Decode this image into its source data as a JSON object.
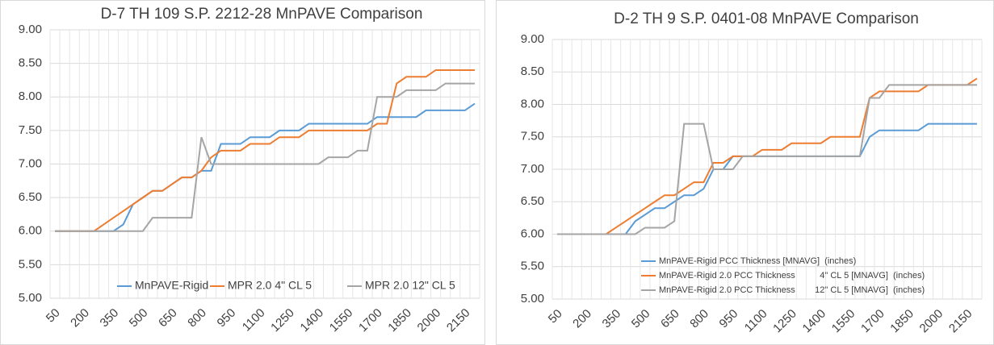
{
  "chart_data": [
    {
      "type": "line",
      "title": "D-7 TH 109 S.P. 2212-28 MnPAVE Comparison",
      "categories": [
        50,
        null,
        null,
        200,
        null,
        null,
        350,
        null,
        null,
        500,
        null,
        null,
        650,
        null,
        null,
        800,
        null,
        null,
        950,
        null,
        null,
        1100,
        null,
        null,
        1250,
        null,
        null,
        1400,
        null,
        null,
        1550,
        null,
        null,
        1700,
        null,
        null,
        1850,
        null,
        null,
        2000,
        null,
        null,
        2150,
        null
      ],
      "series": [
        {
          "name": "MnPAVE-Rigid",
          "color": "#5b9bd5",
          "values": [
            6,
            6,
            6,
            6,
            6,
            6,
            6,
            6.1,
            6.4,
            6.5,
            6.6,
            6.6,
            6.7,
            6.8,
            6.8,
            6.9,
            6.9,
            7.3,
            7.3,
            7.3,
            7.4,
            7.4,
            7.4,
            7.5,
            7.5,
            7.5,
            7.6,
            7.6,
            7.6,
            7.6,
            7.6,
            7.6,
            7.6,
            7.7,
            7.7,
            7.7,
            7.7,
            7.7,
            7.8,
            7.8,
            7.8,
            7.8,
            7.8,
            7.9
          ]
        },
        {
          "name": "MPR 2.0 4\" CL 5",
          "color": "#ed7d31",
          "values": [
            6,
            6,
            6,
            6,
            6,
            6.1,
            6.2,
            6.3,
            6.4,
            6.5,
            6.6,
            6.6,
            6.7,
            6.8,
            6.8,
            6.9,
            7.1,
            7.2,
            7.2,
            7.2,
            7.3,
            7.3,
            7.3,
            7.4,
            7.4,
            7.4,
            7.5,
            7.5,
            7.5,
            7.5,
            7.5,
            7.5,
            7.5,
            7.6,
            7.6,
            8.2,
            8.3,
            8.3,
            8.3,
            8.4,
            8.4,
            8.4,
            8.4,
            8.4
          ]
        },
        {
          "name": "MPR 2.0 12\" CL 5",
          "color": "#a5a5a5",
          "values": [
            6,
            6,
            6,
            6,
            6,
            6,
            6,
            6,
            6,
            6,
            6.2,
            6.2,
            6.2,
            6.2,
            6.2,
            7.4,
            7,
            7,
            7,
            7,
            7,
            7,
            7,
            7,
            7,
            7,
            7,
            7,
            7.1,
            7.1,
            7.1,
            7.2,
            7.2,
            8,
            8,
            8,
            8.1,
            8.1,
            8.1,
            8.1,
            8.2,
            8.2,
            8.2,
            8.2
          ]
        }
      ],
      "ylim": [
        5,
        9
      ],
      "yticks": [
        {
          "value": 5,
          "label": "5.00"
        },
        {
          "value": 5.5,
          "label": "5.50"
        },
        {
          "value": 6,
          "label": "6.00"
        },
        {
          "value": 6.5,
          "label": "6.50"
        },
        {
          "value": 7,
          "label": "7.00"
        },
        {
          "value": 7.5,
          "label": "7.50"
        },
        {
          "value": 8,
          "label": "8.00"
        },
        {
          "value": 8.5,
          "label": "8.50"
        },
        {
          "value": 9,
          "label": "9.00"
        }
      ],
      "grid": true,
      "legend": "lower right"
    },
    {
      "type": "line",
      "title": "D-2 TH 9 S.P. 0401-08 MnPAVE Comparison",
      "categories": [
        50,
        null,
        null,
        200,
        null,
        null,
        350,
        null,
        null,
        500,
        null,
        null,
        650,
        null,
        null,
        800,
        null,
        null,
        950,
        null,
        null,
        1100,
        null,
        null,
        1250,
        null,
        null,
        1400,
        null,
        null,
        1550,
        null,
        null,
        1700,
        null,
        null,
        1850,
        null,
        null,
        2000,
        null,
        null,
        2150,
        null
      ],
      "series": [
        {
          "name": "MnPAVE-Rigid PCC Thickness [MNAVG]  (inches)",
          "color": "#5b9bd5",
          "values": [
            6,
            6,
            6,
            6,
            6,
            6,
            6,
            6,
            6.2,
            6.3,
            6.4,
            6.4,
            6.5,
            6.6,
            6.6,
            6.7,
            7,
            7,
            7.2,
            7.2,
            7.2,
            7.2,
            7.2,
            7.2,
            7.2,
            7.2,
            7.2,
            7.2,
            7.2,
            7.2,
            7.2,
            7.2,
            7.5,
            7.6,
            7.6,
            7.6,
            7.6,
            7.6,
            7.7,
            7.7,
            7.7,
            7.7,
            7.7,
            7.7
          ]
        },
        {
          "name": "MnPAVE-Rigid 2.0 PCC Thickness          4\" CL 5 [MNAVG]  (inches)",
          "color": "#ed7d31",
          "values": [
            6,
            6,
            6,
            6,
            6,
            6,
            6.1,
            6.2,
            6.3,
            6.4,
            6.5,
            6.6,
            6.6,
            6.7,
            6.8,
            6.8,
            7.1,
            7.1,
            7.2,
            7.2,
            7.2,
            7.3,
            7.3,
            7.3,
            7.4,
            7.4,
            7.4,
            7.4,
            7.5,
            7.5,
            7.5,
            7.5,
            8.1,
            8.2,
            8.2,
            8.2,
            8.2,
            8.2,
            8.3,
            8.3,
            8.3,
            8.3,
            8.3,
            8.4
          ]
        },
        {
          "name": "MnPAVE-Rigid 2.0 PCC Thickness        12\" CL 5 [MNAVG]  (inches)",
          "color": "#a5a5a5",
          "values": [
            6,
            6,
            6,
            6,
            6,
            6,
            6,
            6,
            6,
            6.1,
            6.1,
            6.1,
            6.2,
            7.7,
            7.7,
            7.7,
            7,
            7,
            7,
            7.2,
            7.2,
            7.2,
            7.2,
            7.2,
            7.2,
            7.2,
            7.2,
            7.2,
            7.2,
            7.2,
            7.2,
            7.2,
            8.1,
            8.1,
            8.3,
            8.3,
            8.3,
            8.3,
            8.3,
            8.3,
            8.3,
            8.3,
            8.3,
            8.3
          ]
        }
      ],
      "ylim": [
        5,
        9
      ],
      "yticks": [
        {
          "value": 5,
          "label": "5.00"
        },
        {
          "value": 5.5,
          "label": "5.50"
        },
        {
          "value": 6,
          "label": "6.00"
        },
        {
          "value": 6.5,
          "label": "6.50"
        },
        {
          "value": 7,
          "label": "7.00"
        },
        {
          "value": 7.5,
          "label": "7.50"
        },
        {
          "value": 8,
          "label": "8.00"
        },
        {
          "value": 8.5,
          "label": "8.50"
        },
        {
          "value": 9,
          "label": "9.00"
        }
      ],
      "grid": true,
      "legend": "lower center"
    }
  ]
}
